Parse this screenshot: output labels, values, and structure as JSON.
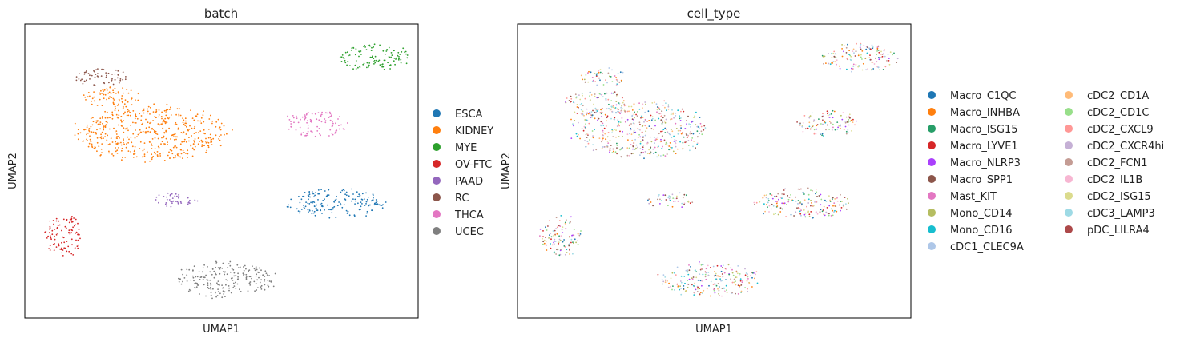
{
  "chart_data": [
    {
      "type": "scatter",
      "title": "batch",
      "xlabel": "UMAP1",
      "ylabel": "UMAP2",
      "xlim": [
        0,
        10
      ],
      "ylim": [
        0,
        10
      ],
      "grid": false,
      "legend_position": "right",
      "series": [
        {
          "name": "ESCA",
          "color": "#1f77b4",
          "clusters": [
            {
              "cx": 7.9,
              "cy": 3.9,
              "rx": 1.25,
              "ry": 0.5
            }
          ]
        },
        {
          "name": "KIDNEY",
          "color": "#ff7f0e",
          "clusters": [
            {
              "cx": 3.2,
              "cy": 6.3,
              "rx": 1.9,
              "ry": 0.95
            },
            {
              "cx": 2.2,
              "cy": 7.5,
              "rx": 0.75,
              "ry": 0.35
            }
          ]
        },
        {
          "name": "MYE",
          "color": "#2ca02c",
          "clusters": [
            {
              "cx": 8.9,
              "cy": 8.85,
              "rx": 0.9,
              "ry": 0.45
            }
          ]
        },
        {
          "name": "OV-FTC",
          "color": "#d62728",
          "clusters": [
            {
              "cx": 1.0,
              "cy": 2.8,
              "rx": 0.5,
              "ry": 0.7
            }
          ]
        },
        {
          "name": "PAAD",
          "color": "#9467bd",
          "clusters": [
            {
              "cx": 3.9,
              "cy": 4.0,
              "rx": 0.6,
              "ry": 0.25
            }
          ]
        },
        {
          "name": "RC",
          "color": "#8c564b",
          "clusters": [
            {
              "cx": 1.95,
              "cy": 8.2,
              "rx": 0.7,
              "ry": 0.3
            }
          ]
        },
        {
          "name": "THCA",
          "color": "#e377c2",
          "clusters": [
            {
              "cx": 7.4,
              "cy": 6.6,
              "rx": 0.8,
              "ry": 0.45
            }
          ]
        },
        {
          "name": "UCEC",
          "color": "#7f7f7f",
          "clusters": [
            {
              "cx": 5.1,
              "cy": 1.3,
              "rx": 1.25,
              "ry": 0.6
            }
          ]
        }
      ]
    },
    {
      "type": "scatter",
      "title": "cell_type",
      "xlabel": "UMAP1",
      "ylabel": "UMAP2",
      "xlim": [
        0,
        10
      ],
      "ylim": [
        0,
        10
      ],
      "grid": false,
      "legend_position": "right",
      "legend_columns": 2,
      "clusters": [
        {
          "cx": 8.7,
          "cy": 8.85,
          "rx": 0.95,
          "ry": 0.5
        },
        {
          "cx": 3.1,
          "cy": 6.4,
          "rx": 1.7,
          "ry": 0.95
        },
        {
          "cx": 2.0,
          "cy": 7.3,
          "rx": 0.75,
          "ry": 0.45
        },
        {
          "cx": 2.2,
          "cy": 8.2,
          "rx": 0.6,
          "ry": 0.3
        },
        {
          "cx": 7.9,
          "cy": 6.6,
          "rx": 0.8,
          "ry": 0.45
        },
        {
          "cx": 3.9,
          "cy": 4.0,
          "rx": 0.6,
          "ry": 0.25
        },
        {
          "cx": 7.3,
          "cy": 3.9,
          "rx": 1.25,
          "ry": 0.5
        },
        {
          "cx": 1.1,
          "cy": 2.8,
          "rx": 0.55,
          "ry": 0.7
        },
        {
          "cx": 4.9,
          "cy": 1.3,
          "rx": 1.25,
          "ry": 0.6
        }
      ],
      "series": [
        {
          "name": "Macro_C1QC",
          "color": "#1f77b4"
        },
        {
          "name": "Macro_INHBA",
          "color": "#ff7f0e"
        },
        {
          "name": "Macro_ISG15",
          "color": "#279e68"
        },
        {
          "name": "Macro_LYVE1",
          "color": "#d62728"
        },
        {
          "name": "Macro_NLRP3",
          "color": "#aa40fc"
        },
        {
          "name": "Macro_SPP1",
          "color": "#8c564b"
        },
        {
          "name": "Mast_KIT",
          "color": "#e377c2"
        },
        {
          "name": "Mono_CD14",
          "color": "#b5bd61"
        },
        {
          "name": "Mono_CD16",
          "color": "#17becf"
        },
        {
          "name": "cDC1_CLEC9A",
          "color": "#aec7e8"
        },
        {
          "name": "cDC2_CD1A",
          "color": "#ffbb78"
        },
        {
          "name": "cDC2_CD1C",
          "color": "#98df8a"
        },
        {
          "name": "cDC2_CXCL9",
          "color": "#ff9896"
        },
        {
          "name": "cDC2_CXCR4hi",
          "color": "#c5b0d5"
        },
        {
          "name": "cDC2_FCN1",
          "color": "#c49c94"
        },
        {
          "name": "cDC2_IL1B",
          "color": "#f7b6d2"
        },
        {
          "name": "cDC2_ISG15",
          "color": "#dbdb8d"
        },
        {
          "name": "cDC3_LAMP3",
          "color": "#9edae5"
        },
        {
          "name": "pDC_LILRA4",
          "color": "#ad494a"
        }
      ]
    }
  ]
}
